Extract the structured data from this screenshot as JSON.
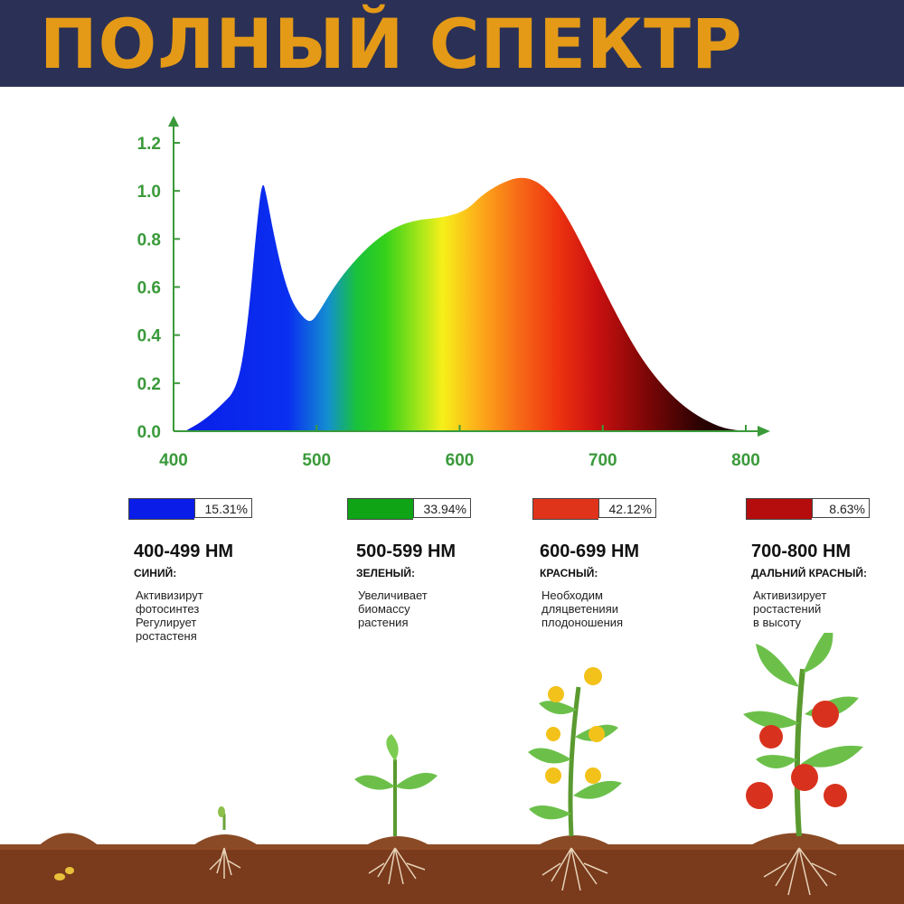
{
  "header": {
    "title": "ПОЛНЫЙ СПЕКТР"
  },
  "colors": {
    "header_bg": "#2b3156",
    "title": "#e49a17",
    "axis": "#3a9a3a",
    "soil": "#7a3a1c"
  },
  "chart_data": {
    "type": "area",
    "title": "",
    "xlabel": "",
    "ylabel": "",
    "xlim": [
      400,
      800
    ],
    "ylim": [
      0,
      1.2
    ],
    "x_ticks": [
      "400",
      "500",
      "600",
      "700",
      "800"
    ],
    "y_ticks": [
      "0.0",
      "0.2",
      "0.4",
      "0.6",
      "0.8",
      "1.0",
      "1.2"
    ],
    "series": [
      {
        "x": [
          408,
          420,
          432,
          445,
          452,
          458,
          462,
          465,
          470,
          476,
          482,
          488,
          495,
          500,
          512,
          525,
          540,
          555,
          570,
          590,
          605,
          615,
          628,
          642,
          655,
          668,
          680,
          695,
          710,
          725,
          740,
          755,
          770,
          785,
          800
        ],
        "y": [
          0.0,
          0.04,
          0.1,
          0.18,
          0.45,
          0.85,
          1.05,
          0.98,
          0.82,
          0.66,
          0.55,
          0.49,
          0.45,
          0.48,
          0.6,
          0.7,
          0.79,
          0.85,
          0.88,
          0.89,
          0.92,
          0.98,
          1.03,
          1.06,
          1.04,
          0.96,
          0.84,
          0.66,
          0.48,
          0.32,
          0.2,
          0.11,
          0.05,
          0.01,
          0.0
        ]
      }
    ]
  },
  "bands": [
    {
      "swatch_color": "#0a1de8",
      "percent": "15.31%",
      "range": "400-499 НМ",
      "name": "СИНИЙ:",
      "desc": [
        "Активизирут",
        "фотосинтез",
        "Регулирует",
        "ростастеня"
      ]
    },
    {
      "swatch_color": "#0fa316",
      "percent": "33.94%",
      "range": "500-599 НМ",
      "name": "ЗЕЛЕНЫЙ:",
      "desc": [
        "Увеличивает",
        "биомассу",
        "растения"
      ]
    },
    {
      "swatch_color": "#e0341a",
      "percent": "42.12%",
      "range": "600-699 НМ",
      "name": "КРАСНЫЙ:",
      "desc": [
        "Необходим",
        "дляцветенияи",
        "плодоношения"
      ]
    },
    {
      "swatch_color": "#b50d0d",
      "percent": "8.63%",
      "range": "700-800 НМ",
      "name": "ДАЛЬНИЙ КРАСНЫЙ:",
      "desc": [
        "Активизирует",
        "ростастений",
        "в высоту"
      ]
    }
  ]
}
